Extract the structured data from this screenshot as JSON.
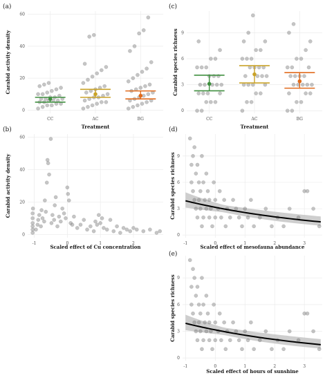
{
  "panels": [
    {
      "id": "a",
      "label": "(a)",
      "type": "scatter-effect",
      "xlabel": "Treatment",
      "ylabel": "Carabid activity density",
      "categories": [
        "CC",
        "AC",
        "BG"
      ],
      "ylim": [
        -2,
        62
      ],
      "yticks": [
        0,
        20,
        40,
        60
      ],
      "colors": {
        "CC": "#3f8f3f",
        "AC": "#c9a227",
        "BG": "#e06a1b"
      },
      "effects": [
        {
          "category": "CC",
          "mean": 7,
          "low": 5,
          "high": 8
        },
        {
          "category": "AC",
          "mean": 10,
          "low": 8,
          "high": 13
        },
        {
          "category": "BG",
          "mean": 9,
          "low": 7,
          "high": 12
        }
      ],
      "points": {
        "CC": [
          1,
          2,
          3,
          3,
          4,
          4,
          5,
          5,
          6,
          6,
          6,
          7,
          7,
          7,
          8,
          8,
          9,
          10,
          10,
          11,
          12,
          13,
          14,
          15,
          16,
          17
        ],
        "AC": [
          1,
          2,
          3,
          4,
          5,
          5,
          6,
          7,
          8,
          8,
          9,
          10,
          11,
          12,
          13,
          14,
          15,
          17,
          19,
          21,
          23,
          25,
          27,
          29,
          46,
          47
        ],
        "BG": [
          1,
          2,
          3,
          4,
          5,
          6,
          6,
          7,
          8,
          9,
          10,
          11,
          12,
          13,
          14,
          15,
          16,
          18,
          20,
          22,
          24,
          26,
          30,
          37,
          40,
          48,
          50,
          58
        ]
      }
    },
    {
      "id": "c",
      "label": "(c)",
      "type": "scatter-effect",
      "xlabel": "Treatment",
      "ylabel": "Carabid species richness",
      "categories": [
        "CC",
        "AC",
        "BG"
      ],
      "ylim": [
        -0.3,
        11.5
      ],
      "yticks": [
        0,
        3,
        6,
        9
      ],
      "colors": {
        "CC": "#3f8f3f",
        "AC": "#c9a227",
        "BG": "#e06a1b"
      },
      "effects": [
        {
          "category": "CC",
          "mean": 3.1,
          "low": 2.3,
          "high": 4.1
        },
        {
          "category": "AC",
          "mean": 4.2,
          "low": 3.2,
          "high": 5.2
        },
        {
          "category": "BG",
          "mean": 3.4,
          "low": 2.6,
          "high": 4.4
        }
      ],
      "points": {
        "CC": [
          0,
          0,
          1,
          1,
          1,
          2,
          2,
          2,
          2,
          3,
          3,
          3,
          3,
          3,
          4,
          4,
          4,
          5,
          5,
          5,
          6,
          6,
          7,
          8
        ],
        "AC": [
          0,
          1,
          1,
          2,
          2,
          3,
          3,
          3,
          3,
          4,
          4,
          4,
          4,
          5,
          5,
          5,
          5,
          6,
          6,
          6,
          7,
          7,
          8,
          8,
          9,
          11
        ],
        "BG": [
          0,
          0,
          1,
          1,
          2,
          2,
          2,
          3,
          3,
          3,
          3,
          3,
          4,
          4,
          4,
          4,
          5,
          5,
          5,
          6,
          6,
          7,
          8,
          9,
          10
        ]
      }
    },
    {
      "id": "b",
      "label": "(b)",
      "type": "scatter-fit",
      "xlabel": "Scaled effect of Cu concentration",
      "ylabel": "Carabid activity density",
      "xlim": [
        -1.2,
        2.9
      ],
      "xticks": [
        -1,
        0,
        1,
        2
      ],
      "ylim": [
        -2,
        62
      ],
      "yticks": [
        0,
        20,
        40,
        60
      ],
      "points": [
        [
          -1.05,
          1
        ],
        [
          -1.05,
          3
        ],
        [
          -1.05,
          5
        ],
        [
          -1.05,
          7
        ],
        [
          -1.05,
          10
        ],
        [
          -1.05,
          13
        ],
        [
          -1.04,
          16
        ],
        [
          -0.95,
          3
        ],
        [
          -0.9,
          6
        ],
        [
          -0.88,
          9
        ],
        [
          -0.85,
          12
        ],
        [
          -0.8,
          5
        ],
        [
          -0.78,
          15
        ],
        [
          -0.75,
          10
        ],
        [
          -0.7,
          8
        ],
        [
          -0.68,
          21
        ],
        [
          -0.65,
          14
        ],
        [
          -0.62,
          32
        ],
        [
          -0.6,
          46
        ],
        [
          -0.58,
          44
        ],
        [
          -0.55,
          37
        ],
        [
          -0.5,
          59
        ],
        [
          -0.48,
          7
        ],
        [
          -0.45,
          12
        ],
        [
          -0.4,
          9
        ],
        [
          -0.38,
          18
        ],
        [
          -0.35,
          23
        ],
        [
          -0.3,
          5
        ],
        [
          -0.25,
          11
        ],
        [
          -0.2,
          8
        ],
        [
          -0.15,
          16
        ],
        [
          -0.1,
          13
        ],
        [
          -0.05,
          10
        ],
        [
          0.0,
          29
        ],
        [
          0.02,
          25
        ],
        [
          0.05,
          21
        ],
        [
          0.1,
          7
        ],
        [
          0.15,
          6
        ],
        [
          0.2,
          11
        ],
        [
          0.3,
          4
        ],
        [
          0.4,
          6
        ],
        [
          0.5,
          9
        ],
        [
          0.6,
          3
        ],
        [
          0.7,
          5
        ],
        [
          0.8,
          2
        ],
        [
          0.85,
          8
        ],
        [
          0.9,
          6
        ],
        [
          0.95,
          12
        ],
        [
          1.0,
          7
        ],
        [
          1.05,
          10
        ],
        [
          1.1,
          4
        ],
        [
          1.2,
          3
        ],
        [
          1.3,
          9
        ],
        [
          1.4,
          2
        ],
        [
          1.5,
          5
        ],
        [
          1.6,
          1
        ],
        [
          1.7,
          4
        ],
        [
          1.8,
          3
        ],
        [
          1.9,
          2
        ],
        [
          2.0,
          4
        ],
        [
          2.1,
          3
        ],
        [
          2.3,
          2
        ],
        [
          2.5,
          3
        ],
        [
          2.7,
          1
        ],
        [
          2.8,
          2
        ]
      ],
      "fit": {
        "intercept": 7.4,
        "slope": -0.38
      },
      "band_halfwidth": 0.18
    },
    {
      "id": "d",
      "label": "(d)",
      "type": "scatter-fit",
      "xlabel": "Scaled effect of mesofauna abundance",
      "ylabel": "Carabid species richness",
      "xlim": [
        -1.1,
        3.6
      ],
      "xticks": [
        -1,
        0,
        1,
        2,
        3
      ],
      "ylim": [
        -0.3,
        11.5
      ],
      "yticks": [
        0,
        3,
        6,
        9
      ],
      "points": [
        [
          -0.85,
          11
        ],
        [
          -0.8,
          8
        ],
        [
          -0.8,
          6
        ],
        [
          -0.75,
          9
        ],
        [
          -0.75,
          5
        ],
        [
          -0.7,
          10
        ],
        [
          -0.7,
          4
        ],
        [
          -0.65,
          7
        ],
        [
          -0.65,
          3
        ],
        [
          -0.6,
          8
        ],
        [
          -0.6,
          2
        ],
        [
          -0.55,
          6
        ],
        [
          -0.55,
          4
        ],
        [
          -0.5,
          5
        ],
        [
          -0.5,
          3
        ],
        [
          -0.45,
          9
        ],
        [
          -0.45,
          1
        ],
        [
          -0.4,
          6
        ],
        [
          -0.4,
          2
        ],
        [
          -0.35,
          4
        ],
        [
          -0.3,
          3
        ],
        [
          -0.3,
          7
        ],
        [
          -0.25,
          5
        ],
        [
          -0.2,
          2
        ],
        [
          -0.2,
          4
        ],
        [
          -0.15,
          3
        ],
        [
          -0.1,
          1
        ],
        [
          -0.05,
          6
        ],
        [
          0.0,
          4
        ],
        [
          0.0,
          2
        ],
        [
          0.1,
          3
        ],
        [
          0.15,
          5
        ],
        [
          0.2,
          2
        ],
        [
          0.3,
          4
        ],
        [
          0.35,
          1
        ],
        [
          0.4,
          3
        ],
        [
          0.5,
          2
        ],
        [
          0.6,
          4
        ],
        [
          0.7,
          3
        ],
        [
          0.8,
          2
        ],
        [
          0.9,
          1
        ],
        [
          1.0,
          3
        ],
        [
          1.1,
          2
        ],
        [
          1.2,
          4
        ],
        [
          1.3,
          1
        ],
        [
          1.5,
          2
        ],
        [
          1.7,
          3
        ],
        [
          1.9,
          1
        ],
        [
          2.1,
          2
        ],
        [
          2.3,
          1
        ],
        [
          2.5,
          3
        ],
        [
          2.8,
          2
        ],
        [
          3.0,
          5
        ],
        [
          3.1,
          5
        ],
        [
          3.3,
          3
        ],
        [
          3.5,
          1
        ]
      ],
      "fit": {
        "intercept": 1.15,
        "slope": -0.21
      },
      "band_halfwidth": 0.14
    },
    {
      "id": "e",
      "label": "(e)",
      "type": "scatter-fit",
      "xlabel": "Scaled effect of hours of sunshine",
      "ylabel": "Carabid species richness",
      "xlim": [
        -1.1,
        3.6
      ],
      "xticks": [
        -1,
        0,
        1,
        2,
        3
      ],
      "ylim": [
        -0.3,
        11.5
      ],
      "yticks": [
        0,
        3,
        6,
        9
      ],
      "points": [
        [
          -0.85,
          11
        ],
        [
          -0.8,
          8
        ],
        [
          -0.8,
          6
        ],
        [
          -0.75,
          10
        ],
        [
          -0.75,
          5
        ],
        [
          -0.7,
          9
        ],
        [
          -0.7,
          4
        ],
        [
          -0.65,
          7
        ],
        [
          -0.65,
          3
        ],
        [
          -0.6,
          8
        ],
        [
          -0.6,
          2
        ],
        [
          -0.55,
          6
        ],
        [
          -0.55,
          4
        ],
        [
          -0.5,
          5
        ],
        [
          -0.5,
          3
        ],
        [
          -0.45,
          9
        ],
        [
          -0.45,
          1
        ],
        [
          -0.4,
          6
        ],
        [
          -0.4,
          2
        ],
        [
          -0.35,
          4
        ],
        [
          -0.3,
          3
        ],
        [
          -0.3,
          7
        ],
        [
          -0.25,
          5
        ],
        [
          -0.2,
          2
        ],
        [
          -0.2,
          4
        ],
        [
          -0.15,
          3
        ],
        [
          -0.1,
          1
        ],
        [
          -0.05,
          6
        ],
        [
          0.0,
          4
        ],
        [
          0.0,
          2
        ],
        [
          0.1,
          3
        ],
        [
          0.15,
          5
        ],
        [
          0.2,
          2
        ],
        [
          0.3,
          4
        ],
        [
          0.35,
          1
        ],
        [
          0.4,
          3
        ],
        [
          0.5,
          2
        ],
        [
          0.6,
          4
        ],
        [
          0.7,
          3
        ],
        [
          0.8,
          2
        ],
        [
          0.9,
          1
        ],
        [
          1.0,
          3
        ],
        [
          1.1,
          2
        ],
        [
          1.2,
          4
        ],
        [
          1.3,
          1
        ],
        [
          1.5,
          2
        ],
        [
          1.7,
          3
        ],
        [
          1.9,
          1
        ],
        [
          2.1,
          2
        ],
        [
          2.3,
          1
        ],
        [
          2.5,
          3
        ],
        [
          2.8,
          2
        ],
        [
          3.0,
          5
        ],
        [
          3.1,
          5
        ],
        [
          3.3,
          3
        ],
        [
          3.5,
          1
        ]
      ],
      "fit": {
        "intercept": 1.15,
        "slope": -0.21
      },
      "band_halfwidth": 0.14
    }
  ],
  "chart_data": [
    {
      "type": "scatter",
      "panel": "a",
      "xlabel": "Treatment",
      "ylabel": "Carabid activity density",
      "categories": [
        "CC",
        "AC",
        "BG"
      ],
      "ylim": [
        0,
        60
      ],
      "series": [
        {
          "name": "CC",
          "mean": 7,
          "ci": [
            5,
            8
          ]
        },
        {
          "name": "AC",
          "mean": 10,
          "ci": [
            8,
            13
          ]
        },
        {
          "name": "BG",
          "mean": 9,
          "ci": [
            7,
            12
          ]
        }
      ]
    },
    {
      "type": "scatter",
      "panel": "c",
      "xlabel": "Treatment",
      "ylabel": "Carabid species richness",
      "categories": [
        "CC",
        "AC",
        "BG"
      ],
      "ylim": [
        0,
        11
      ],
      "series": [
        {
          "name": "CC",
          "mean": 3.1,
          "ci": [
            2.3,
            4.1
          ]
        },
        {
          "name": "AC",
          "mean": 4.2,
          "ci": [
            3.2,
            5.2
          ]
        },
        {
          "name": "BG",
          "mean": 3.4,
          "ci": [
            2.6,
            4.4
          ]
        }
      ]
    },
    {
      "type": "scatter",
      "panel": "b",
      "xlabel": "Scaled effect of Cu concentration",
      "ylabel": "Carabid activity density",
      "xlim": [
        -1.2,
        2.9
      ],
      "ylim": [
        0,
        60
      ]
    },
    {
      "type": "scatter",
      "panel": "d",
      "xlabel": "Scaled effect of mesofauna abundance",
      "ylabel": "Carabid species richness",
      "xlim": [
        -1.1,
        3.6
      ],
      "ylim": [
        0,
        11
      ]
    },
    {
      "type": "scatter",
      "panel": "e",
      "xlabel": "Scaled effect of hours of sunshine",
      "ylabel": "Carabid species richness",
      "xlim": [
        -1.1,
        3.6
      ],
      "ylim": [
        0,
        11
      ]
    }
  ]
}
